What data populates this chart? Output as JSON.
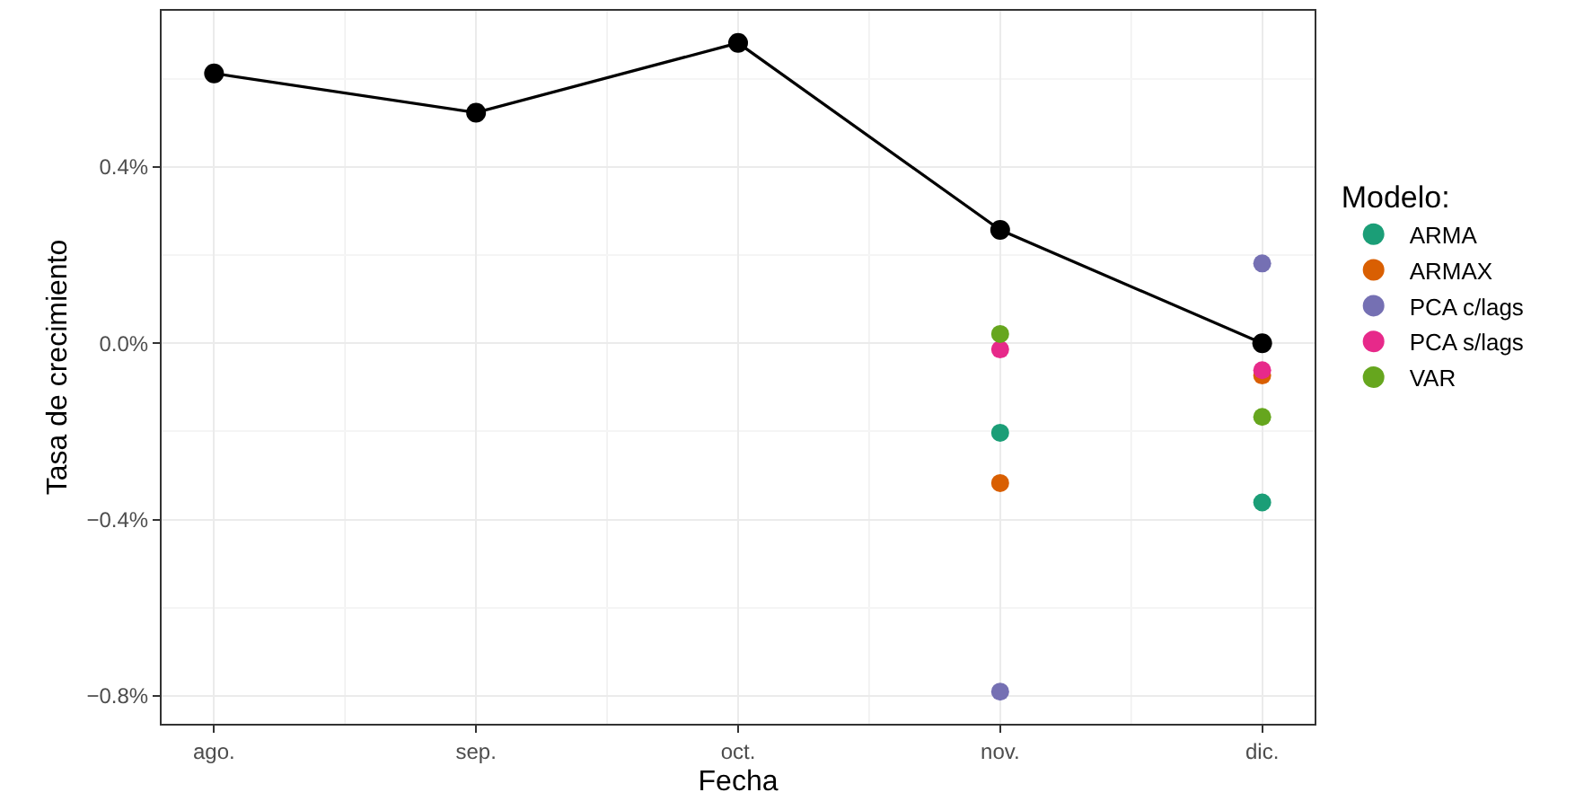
{
  "chart_data": {
    "type": "scatter",
    "xlabel": "Fecha",
    "ylabel": "Tasa de crecimiento",
    "legend_title": "Modelo:",
    "legend": "right",
    "grid": true,
    "marker": "circle",
    "categories": [
      "ago.",
      "sep.",
      "oct.",
      "nov.",
      "dic."
    ],
    "ylim": [
      -0.863,
      0.754
    ],
    "yticks": [
      {
        "value": -0.8,
        "label": "−0.8%"
      },
      {
        "value": -0.4,
        "label": "−0.4%"
      },
      {
        "value": 0.0,
        "label": "0.0%"
      },
      {
        "value": 0.4,
        "label": "0.4%"
      }
    ],
    "series": [
      {
        "type": "line",
        "color": "#000000",
        "values": [
          0.612,
          0.523,
          0.681,
          0.257,
          0.0
        ]
      },
      {
        "name": "ARMA",
        "color": "#1b9e77",
        "values": [
          null,
          null,
          null,
          -0.203,
          -0.361
        ]
      },
      {
        "name": "ARMAX",
        "color": "#d95f02",
        "values": [
          null,
          null,
          null,
          -0.317,
          -0.073
        ]
      },
      {
        "name": "PCA c/lags",
        "color": "#7570b3",
        "values": [
          null,
          null,
          null,
          -0.79,
          0.181
        ]
      },
      {
        "name": "PCA s/lags",
        "color": "#e7298a",
        "values": [
          null,
          null,
          null,
          -0.014,
          -0.061
        ]
      },
      {
        "name": "VAR",
        "color": "#66a61e",
        "values": [
          null,
          null,
          null,
          0.021,
          -0.167
        ]
      }
    ]
  }
}
